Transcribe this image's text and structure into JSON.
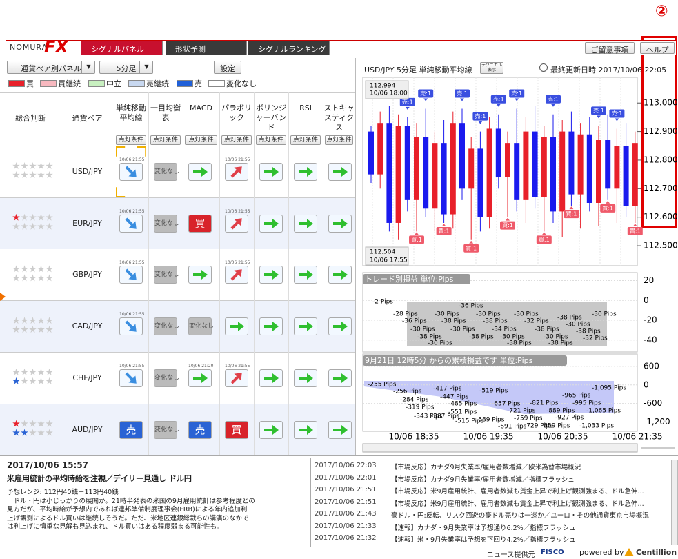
{
  "annotation": "②",
  "header": {
    "logo_text": "NOMURA",
    "logo_fx": "FX",
    "tabs": [
      "シグナルパネル",
      "形状予測",
      "シグナルランキング"
    ],
    "buttons": [
      "ご留意事項",
      "ヘルプ"
    ]
  },
  "controls": {
    "panel_select": "通貨ペア別パネル",
    "timeframe_select": "5分足",
    "settings": "設定"
  },
  "legend": [
    {
      "label": "買",
      "color": "#e8202a"
    },
    {
      "label": "買継続",
      "color": "#f7b8bf"
    },
    {
      "label": "中立",
      "color": "#c8f0c0"
    },
    {
      "label": "売継続",
      "color": "#c8d8f0"
    },
    {
      "label": "売",
      "color": "#2060d8"
    },
    {
      "label": "変化なし",
      "color": "#ffffff"
    }
  ],
  "signal_labels": {
    "nochange": "変化なし",
    "buy": "買",
    "sell": "売"
  },
  "table": {
    "columns": [
      "総合判断",
      "通貨ペア",
      "単純移動平均線",
      "一目均衡表",
      "MACD",
      "パラボリック",
      "ボリンジャーバンド",
      "RSI",
      "ストキャスティクス"
    ],
    "condition_button": "点灯条件",
    "rows": [
      {
        "pair": "USD/JPY",
        "red_stars": 0,
        "blue_stars": 0,
        "cells": [
          {
            "signal": "down",
            "time": "10/06 21:55"
          },
          {
            "signal": "nochange"
          },
          {
            "signal": "right"
          },
          {
            "signal": "up",
            "time": "10/06 21:55"
          },
          {
            "signal": "right"
          },
          {
            "signal": "right"
          },
          {
            "signal": "right"
          }
        ]
      },
      {
        "pair": "EUR/JPY",
        "red_stars": 1,
        "blue_stars": 0,
        "cells": [
          {
            "signal": "down",
            "time": "10/06 21:55"
          },
          {
            "signal": "nochange"
          },
          {
            "signal": "buy"
          },
          {
            "signal": "up",
            "time": "10/06 21:55"
          },
          {
            "signal": "right"
          },
          {
            "signal": "right"
          },
          {
            "signal": "right"
          }
        ]
      },
      {
        "pair": "GBP/JPY",
        "red_stars": 0,
        "blue_stars": 0,
        "cells": [
          {
            "signal": "down",
            "time": "10/06 21:55"
          },
          {
            "signal": "nochange"
          },
          {
            "signal": "right"
          },
          {
            "signal": "up",
            "time": "10/06 21:55"
          },
          {
            "signal": "right"
          },
          {
            "signal": "right"
          },
          {
            "signal": "right"
          }
        ]
      },
      {
        "pair": "CAD/JPY",
        "red_stars": 0,
        "blue_stars": 0,
        "cells": [
          {
            "signal": "down",
            "time": "10/06 21:55"
          },
          {
            "signal": "nochange"
          },
          {
            "signal": "nochange"
          },
          {
            "signal": "right"
          },
          {
            "signal": "right"
          },
          {
            "signal": "right"
          },
          {
            "signal": "right"
          }
        ]
      },
      {
        "pair": "CHF/JPY",
        "red_stars": 0,
        "blue_stars": 1,
        "cells": [
          {
            "signal": "down",
            "time": "10/06 21:55"
          },
          {
            "signal": "nochange"
          },
          {
            "signal": "right",
            "time": "10/06 21:20"
          },
          {
            "signal": "up",
            "time": "10/06 21:55"
          },
          {
            "signal": "right"
          },
          {
            "signal": "right"
          },
          {
            "signal": "right"
          }
        ]
      },
      {
        "pair": "AUD/JPY",
        "red_stars": 1,
        "blue_stars": 2,
        "cells": [
          {
            "signal": "sell"
          },
          {
            "signal": "nochange"
          },
          {
            "signal": "sell"
          },
          {
            "signal": "buy"
          },
          {
            "signal": "right"
          },
          {
            "signal": "right"
          },
          {
            "signal": "right"
          }
        ]
      }
    ]
  },
  "chart_panel": {
    "title": "USD/JPY 5分足 単純移動平均線",
    "tech_button": "テクニカル表示",
    "updated": "最終更新日時 2017/10/06 22:05",
    "price": {
      "ylim": [
        112.43,
        113.09
      ],
      "yticks": [
        {
          "value": 113,
          "label": "113.000"
        },
        {
          "value": 112.9,
          "label": "112.900"
        },
        {
          "value": 112.8,
          "label": "112.800"
        },
        {
          "value": 112.7,
          "label": "112.700"
        },
        {
          "value": 112.6,
          "label": "112.600"
        },
        {
          "value": 112.5,
          "label": "112.500"
        }
      ],
      "high_label": [
        "112.994",
        "10/06 18:00"
      ],
      "low_label": [
        "112.504",
        "10/06 17:55"
      ],
      "up_color": "#e8202a",
      "down_color": "#1a1aee",
      "candles": [
        [
          112.9,
          112.92,
          112.72,
          112.75
        ],
        [
          112.75,
          112.97,
          112.7,
          112.93
        ],
        [
          112.93,
          112.99,
          112.55,
          112.58
        ],
        [
          112.58,
          112.96,
          112.52,
          112.92
        ],
        [
          112.92,
          112.95,
          112.62,
          112.66
        ],
        [
          112.66,
          112.93,
          112.55,
          112.88
        ],
        [
          112.88,
          112.98,
          112.6,
          112.63
        ],
        [
          112.63,
          112.9,
          112.55,
          112.86
        ],
        [
          112.86,
          112.94,
          112.58,
          112.61
        ],
        [
          112.61,
          112.97,
          112.56,
          112.93
        ],
        [
          112.93,
          112.98,
          112.66,
          112.7
        ],
        [
          112.7,
          112.88,
          112.52,
          112.84
        ],
        [
          112.84,
          112.9,
          112.55,
          112.6
        ],
        [
          112.6,
          112.95,
          112.56,
          112.91
        ],
        [
          112.91,
          112.96,
          112.7,
          112.74
        ],
        [
          112.74,
          112.9,
          112.6,
          112.86
        ],
        [
          112.86,
          112.98,
          112.62,
          112.66
        ],
        [
          112.66,
          112.95,
          112.58,
          112.9
        ],
        [
          112.9,
          112.99,
          112.63,
          112.67
        ],
        [
          112.67,
          112.92,
          112.55,
          112.88
        ],
        [
          112.88,
          112.96,
          112.58,
          112.62
        ],
        [
          112.62,
          112.94,
          112.53,
          112.9
        ],
        [
          112.9,
          112.97,
          112.64,
          112.68
        ],
        [
          112.68,
          112.93,
          112.56,
          112.89
        ],
        [
          112.89,
          112.95,
          112.62,
          112.65
        ],
        [
          112.65,
          112.92,
          112.57,
          112.87
        ],
        [
          112.87,
          112.96,
          112.66,
          112.7
        ],
        [
          112.7,
          112.91,
          112.58,
          112.85
        ],
        [
          112.85,
          112.93,
          112.6,
          112.64
        ],
        [
          112.64,
          112.9,
          112.58,
          112.86
        ]
      ],
      "markers": [
        {
          "candle": 2,
          "kind": "sell",
          "label": "売:1"
        },
        {
          "candle": 4,
          "kind": "sell",
          "label": "売:1"
        },
        {
          "candle": 5,
          "kind": "buy",
          "label": "買:1"
        },
        {
          "candle": 6,
          "kind": "sell",
          "label": "売:1"
        },
        {
          "candle": 8,
          "kind": "buy",
          "label": "買:1"
        },
        {
          "candle": 10,
          "kind": "sell",
          "label": "売:1"
        },
        {
          "candle": 11,
          "kind": "buy",
          "label": "買:1"
        },
        {
          "candle": 12,
          "kind": "sell",
          "label": "売:1"
        },
        {
          "candle": 14,
          "kind": "sell",
          "label": "売:1"
        },
        {
          "candle": 15,
          "kind": "buy",
          "label": "買:1"
        },
        {
          "candle": 16,
          "kind": "sell",
          "label": "売:1"
        },
        {
          "candle": 19,
          "kind": "buy",
          "label": "買:1"
        },
        {
          "candle": 20,
          "kind": "sell",
          "label": "売:1"
        },
        {
          "candle": 22,
          "kind": "buy",
          "label": "買:1"
        },
        {
          "candle": 25,
          "kind": "sell",
          "label": "売:1"
        },
        {
          "candle": 26,
          "kind": "buy",
          "label": "買:1"
        },
        {
          "candle": 27,
          "kind": "sell",
          "label": "売:1"
        },
        {
          "candle": 29,
          "kind": "buy",
          "label": "買:1"
        }
      ],
      "marker_colors": {
        "sell": "#3a4fe0",
        "buy": "#ef5a6a"
      }
    },
    "trade": {
      "title": "トレード別損益 単位:Pips",
      "ylim": [
        -52,
        28
      ],
      "yticks": [
        20,
        0,
        -20,
        -40
      ],
      "labels": [
        "-2 Pips",
        "-36 Pips",
        "-28 Pips",
        "-30 Pips",
        "-30 Pips",
        "-30 Pips",
        "-38 Pips",
        "-30 Pips",
        "-36 Pips",
        "-38 Pips",
        "-38 Pips",
        "-32 Pips",
        "-30 Pips",
        "-30 Pips",
        "-30 Pips",
        "-34 Pips",
        "-38 Pips",
        "-38 Pips",
        "-38 Pips",
        "-38 Pips",
        "-30 Pips",
        "-30 Pips",
        "-32 Pips",
        "-30 Pips",
        "-38 Pips",
        "-38 Pips"
      ]
    },
    "cumulative": {
      "title": "9月21日 12時5分 からの累積損益です 単位:Pips",
      "ylim": [
        -1500,
        1000
      ],
      "yticks": [
        600,
        0,
        -600,
        {
          "value": -1200,
          "label": "-1,200"
        }
      ],
      "labels": [
        "-255 Pips",
        "-1,095 Pips",
        "-417 Pips",
        "-519 Pips",
        "-256 Pips",
        "-447 Pips",
        "-965 Pips",
        "-284 Pips",
        "-485 Pips",
        "-657 Pips",
        "-821 Pips",
        "-995 Pips",
        "-319 Pips",
        "-721 Pips",
        "-889 Pips",
        "-1,065 Pips",
        "-551 Pips",
        "-343 Pips",
        "-387 Pips",
        "-759 Pips",
        "-927 Pips",
        "-515 Pips",
        "-589 Pips",
        "-691 Pips",
        "-729 Pips",
        "-859 Pips",
        "-1,033 Pips"
      ]
    },
    "xticks": [
      "10/06 18:35",
      "10/06 19:35",
      "10/06 20:35",
      "10/06 21:35"
    ]
  },
  "news": {
    "date": "2017/10/06 15:57",
    "headline": "米雇用統計の平均時給を注視／デイリー見通し ドル円",
    "body": [
      "予想レンジ: 112円40銭－113円40銭",
      "　ドル・円は小じっかりの展開か。21時半発表の米国の9月雇用統計は参考程度との",
      "見方だが、平均時給が予想内であれば連邦準備制度理事会(FRB)による年内追加利",
      "上げ観測によるドル買いは継続しそうだ。ただ、米地区連銀総裁らの講演のなかで",
      "は利上げに慎重な見解も見込まれ、ドル買いはある程度弱まる可能性も。"
    ],
    "list": [
      {
        "time": "2017/10/06 22:03",
        "title": "【市場反応】カナダ9月失業率/雇用者数増減／欧米為替市場概況"
      },
      {
        "time": "2017/10/06 22:01",
        "title": "【市場反応】カナダ9月失業率/雇用者数増減／指標フラッシュ"
      },
      {
        "time": "2017/10/06 21:51",
        "title": "【市場反応】米9月雇用統計、雇用者数減も賃金上昇で利上げ観測強まる、ドル急伸..."
      },
      {
        "time": "2017/10/06 21:51",
        "title": "【市場反応】米9月雇用統計、雇用者数減も賃金上昇で利上げ観測強まる、ドル急伸..."
      },
      {
        "time": "2017/10/06 21:43",
        "title": "豪ドル・円:反転、リスク回避の豪ドル売りは一巡か／ユーロ・その他通貨東京市場概況"
      },
      {
        "time": "2017/10/06 21:33",
        "title": "【速報】カナダ・9月失業率は予想通り6.2%／指標フラッシュ"
      },
      {
        "time": "2017/10/06 21:32",
        "title": "【速報】米・9月失業率は予想を下回り4.2%／指標フラッシュ"
      }
    ]
  },
  "footer": {
    "provider": "ニュース提供元",
    "provider_name": "FISCO",
    "powered": "powered by",
    "powered_name": "Centillion"
  }
}
